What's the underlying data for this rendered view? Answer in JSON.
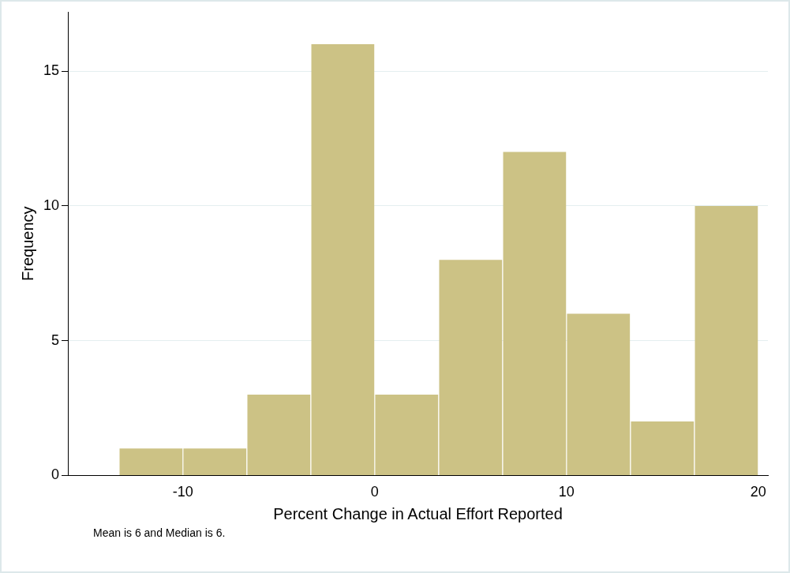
{
  "chart_data": {
    "type": "histogram",
    "xlabel": "Percent Change in Actual Effort Reported",
    "ylabel": "Frequency",
    "bins": [
      -13.33,
      -10,
      -6.67,
      -3.33,
      0,
      3.33,
      6.67,
      10,
      13.33,
      16.67,
      20
    ],
    "values": [
      1,
      1,
      3,
      16,
      3,
      8,
      12,
      6,
      2,
      10
    ],
    "color": "#ccc285",
    "xlim": [
      -16,
      20.5
    ],
    "xticks": [
      -10,
      0,
      10,
      20
    ],
    "ylim": [
      0,
      17.2
    ],
    "yticks": [
      0,
      5,
      10,
      15
    ],
    "grid": "y",
    "legend": false,
    "annotations": [
      "Mean is 6 and Median is 6."
    ]
  }
}
